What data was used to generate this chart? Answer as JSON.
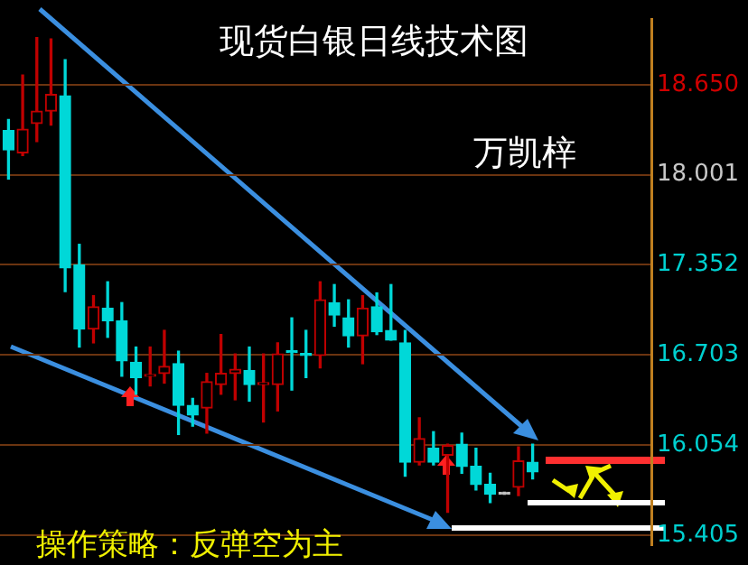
{
  "chart_data": {
    "type": "candlestick",
    "title": "现货白银日线技术图",
    "annotations": [
      "万凯梓",
      "操作策略：反弹空为主"
    ],
    "categories": [
      null,
      null,
      null,
      null,
      null,
      null,
      null,
      null,
      null,
      null,
      null,
      null,
      null,
      null,
      null,
      null,
      null,
      null,
      null,
      null,
      null,
      null,
      null,
      null,
      null,
      null,
      null,
      null,
      null,
      null,
      null,
      null,
      null,
      null,
      null,
      null,
      null,
      null
    ],
    "ohlc": [
      [
        18.32,
        18.4,
        17.97,
        18.18
      ],
      [
        18.16,
        18.72,
        18.14,
        18.33
      ],
      [
        18.37,
        18.99,
        18.24,
        18.46
      ],
      [
        18.46,
        18.98,
        18.36,
        18.58
      ],
      [
        18.57,
        18.83,
        17.16,
        17.33
      ],
      [
        17.35,
        17.5,
        16.76,
        16.89
      ],
      [
        16.89,
        17.13,
        16.79,
        17.05
      ],
      [
        17.04,
        17.23,
        16.83,
        16.95
      ],
      [
        16.95,
        17.08,
        16.55,
        16.66
      ],
      [
        16.65,
        16.76,
        16.42,
        16.54
      ],
      [
        16.55,
        16.76,
        16.48,
        16.56
      ],
      [
        16.57,
        16.88,
        16.5,
        16.62
      ],
      [
        16.64,
        16.73,
        16.13,
        16.34
      ],
      [
        16.34,
        16.39,
        16.19,
        16.27
      ],
      [
        16.32,
        16.57,
        16.14,
        16.51
      ],
      [
        16.49,
        16.85,
        16.42,
        16.57
      ],
      [
        16.57,
        16.71,
        16.38,
        16.6
      ],
      [
        16.59,
        16.76,
        16.37,
        16.49
      ],
      [
        16.49,
        16.71,
        16.22,
        16.5
      ],
      [
        16.49,
        16.79,
        16.3,
        16.71
      ],
      [
        16.73,
        16.97,
        16.45,
        16.72
      ],
      [
        16.71,
        16.88,
        16.54,
        16.7
      ],
      [
        16.7,
        17.23,
        16.61,
        17.1
      ],
      [
        17.08,
        17.21,
        16.91,
        16.99
      ],
      [
        16.97,
        17.1,
        16.76,
        16.84
      ],
      [
        16.84,
        17.13,
        16.64,
        17.04
      ],
      [
        17.05,
        17.15,
        16.85,
        16.87
      ],
      [
        16.88,
        17.21,
        16.81,
        16.81
      ],
      [
        16.79,
        16.88,
        15.83,
        15.93
      ],
      [
        15.93,
        16.25,
        15.91,
        16.1
      ],
      [
        16.03,
        16.15,
        15.91,
        15.93
      ],
      [
        15.98,
        16.06,
        15.57,
        16.05
      ],
      [
        16.06,
        16.14,
        15.85,
        15.9
      ],
      [
        15.9,
        16.03,
        15.73,
        15.77
      ],
      [
        15.77,
        15.85,
        15.64,
        15.7
      ],
      [
        15.7,
        15.7,
        15.7,
        15.7
      ],
      [
        15.75,
        16.04,
        15.69,
        15.94
      ],
      [
        15.93,
        16.06,
        15.81,
        15.86
      ]
    ],
    "colors": [
      "#00d8d8",
      "#c00000",
      "#c00000",
      "#c00000",
      "#00d8d8",
      "#00d8d8",
      "#c00000",
      "#00d8d8",
      "#00d8d8",
      "#00d8d8",
      "#c00000",
      "#c00000",
      "#00d8d8",
      "#00d8d8",
      "#c00000",
      "#c00000",
      "#c00000",
      "#00d8d8",
      "#c00000",
      "#c00000",
      "#00d8d8",
      "#00d8d8",
      "#c00000",
      "#00d8d8",
      "#00d8d8",
      "#c00000",
      "#00d8d8",
      "#00d8d8",
      "#00d8d8",
      "#c00000",
      "#00d8d8",
      "#c00000",
      "#00d8d8",
      "#00d8d8",
      "#00d8d8",
      "#c0c0c0",
      "#c00000",
      "#00d8d8"
    ],
    "ylim": [
      15.33,
      19.12
    ],
    "yticks": [
      {
        "value": 15.405,
        "label": "15.405"
      },
      {
        "value": 16.054,
        "label": "16.054"
      },
      {
        "value": 16.703,
        "label": "16.703"
      },
      {
        "value": 17.352,
        "label": "17.352"
      },
      {
        "value": 18.001,
        "label": "18.001"
      },
      {
        "value": 18.65,
        "label": "18.650"
      }
    ],
    "grid": "y",
    "legend": false,
    "tick_labels": "y"
  }
}
